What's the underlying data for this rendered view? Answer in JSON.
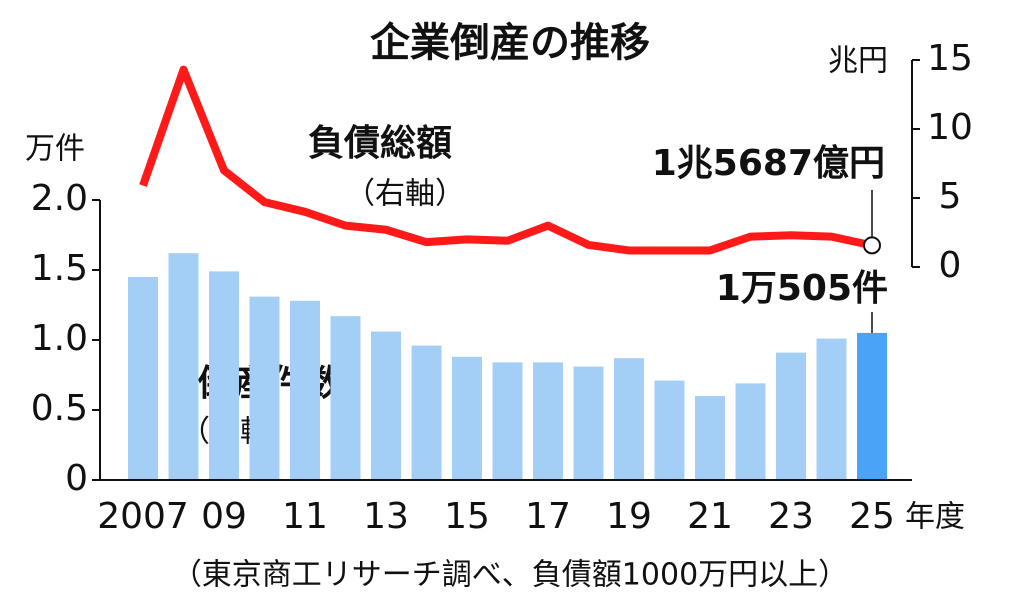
{
  "chart_data": {
    "type": "bar_line",
    "title": "企業倒産の推移",
    "y_unit": "万件",
    "y2_unit": "兆円",
    "x_unit": "年度",
    "source": "（東京商工リサーチ調べ、負債額1000万円以上）",
    "categories": [
      "2007",
      null,
      "09",
      null,
      "11",
      null,
      "13",
      null,
      "15",
      null,
      "17",
      null,
      "19",
      null,
      "21",
      null,
      "23",
      null,
      "25"
    ],
    "series": [
      {
        "name": "倒産件数",
        "axis_note": "（左軸）",
        "type": "bar",
        "axis": "y",
        "colors": [
          "#a3cff7",
          "#a3cff7",
          "#a3cff7",
          "#a3cff7",
          "#a3cff7",
          "#a3cff7",
          "#a3cff7",
          "#a3cff7",
          "#a3cff7",
          "#a3cff7",
          "#a3cff7",
          "#a3cff7",
          "#a3cff7",
          "#a3cff7",
          "#a3cff7",
          "#a3cff7",
          "#a3cff7",
          "#a3cff7",
          "#4aa3f7"
        ],
        "values": [
          1.45,
          1.62,
          1.49,
          1.31,
          1.28,
          1.17,
          1.06,
          0.96,
          0.88,
          0.84,
          0.84,
          0.81,
          0.87,
          0.71,
          0.6,
          0.69,
          0.91,
          1.01,
          1.0505
        ],
        "last_label": "1万505件"
      },
      {
        "name": "負債総額",
        "axis_note": "（右軸）",
        "type": "line",
        "axis": "y2",
        "color": "#ff1a1a",
        "values": [
          5.9,
          14.3,
          7.0,
          4.7,
          4.0,
          3.0,
          2.7,
          1.8,
          2.0,
          1.9,
          3.0,
          1.6,
          1.2,
          1.2,
          1.2,
          2.2,
          2.3,
          2.2,
          1.5687
        ],
        "last_label": "1兆5687億円"
      }
    ],
    "ylim": [
      0,
      2
    ],
    "yticks": [
      0,
      0.5,
      {
        "value": 1,
        "label": "1.0"
      },
      1.5,
      {
        "value": 2,
        "label": "2.0"
      }
    ],
    "y2lim": [
      0,
      15
    ],
    "y2ticks": [
      0,
      5,
      10,
      15
    ]
  }
}
